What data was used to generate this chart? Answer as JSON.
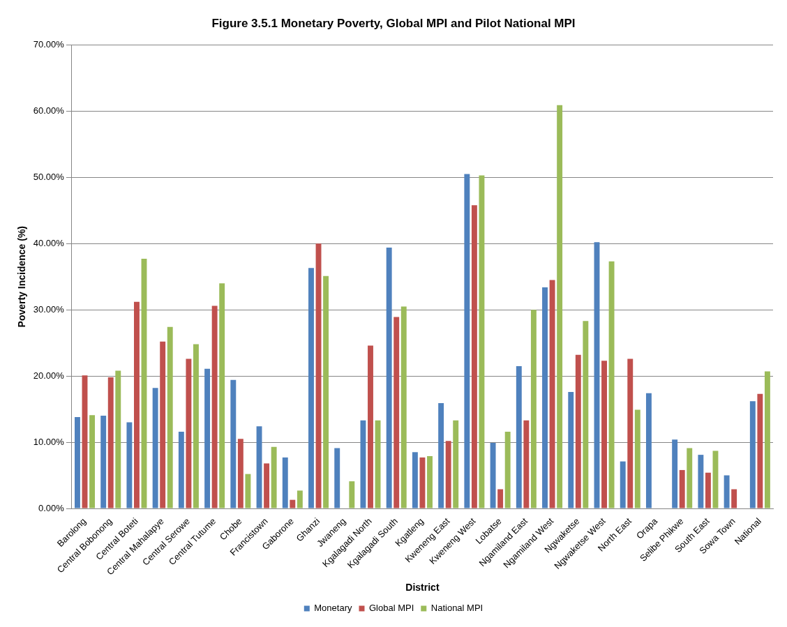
{
  "chart_data": {
    "type": "bar",
    "title": "Figure 3.5.1 Monetary Poverty, Global MPI and Pilot National MPI",
    "xlabel": "District",
    "ylabel": "Poverty Incidence (%)",
    "categories": [
      "Barolong",
      "Central Bobonong",
      "Central Boteti",
      "Central Mahalapye",
      "Central Serowe",
      "Central Tutume",
      "Chobe",
      "Francistown",
      "Gaborone",
      "Ghanzi",
      "Jwaneng",
      "Kgalagadi North",
      "Kgalagadi South",
      "Kgatleng",
      "Kweneng East",
      "Kweneng West",
      "Lobatse",
      "Ngamiland East",
      "Ngamiland West",
      "Ngwaketse",
      "Ngwaketse West",
      "North East",
      "Orapa",
      "Selibe Phikwe",
      "South East",
      "Sowa Town",
      "National"
    ],
    "series": [
      {
        "name": "Monetary",
        "color": "#4f81bd",
        "values": [
          13.8,
          14.0,
          13.0,
          18.2,
          11.6,
          21.1,
          19.4,
          12.4,
          7.7,
          36.3,
          9.1,
          13.3,
          39.4,
          8.5,
          15.9,
          50.5,
          9.9,
          21.5,
          33.4,
          17.6,
          40.2,
          7.1,
          17.4,
          10.4,
          8.1,
          5.0,
          16.2
        ]
      },
      {
        "name": "Global MPI",
        "color": "#c0504d",
        "values": [
          20.1,
          19.8,
          31.2,
          25.2,
          22.6,
          30.6,
          10.5,
          6.8,
          1.3,
          40.0,
          null,
          24.6,
          28.9,
          7.7,
          10.2,
          45.8,
          2.9,
          13.3,
          34.5,
          23.2,
          22.3,
          22.6,
          null,
          5.8,
          5.4,
          2.9,
          17.3
        ]
      },
      {
        "name": "National MPI",
        "color": "#9bbb59",
        "values": [
          14.1,
          20.8,
          37.7,
          27.4,
          24.8,
          34.0,
          5.2,
          9.3,
          2.7,
          35.1,
          4.1,
          13.3,
          30.5,
          7.9,
          13.3,
          50.3,
          11.6,
          30.0,
          60.9,
          28.3,
          37.3,
          14.9,
          null,
          9.1,
          8.7,
          null,
          20.7
        ]
      }
    ],
    "ylim": [
      0,
      70
    ],
    "yticks": [
      {
        "value": 0,
        "label": "0.00%"
      },
      {
        "value": 10,
        "label": "10.00%"
      },
      {
        "value": 20,
        "label": "20.00%"
      },
      {
        "value": 30,
        "label": "30.00%"
      },
      {
        "value": 40,
        "label": "40.00%"
      },
      {
        "value": 50,
        "label": "50.00%"
      },
      {
        "value": 60,
        "label": "60.00%"
      },
      {
        "value": 70,
        "label": "70.00%"
      }
    ],
    "grid": "y",
    "legend": "bottom"
  }
}
